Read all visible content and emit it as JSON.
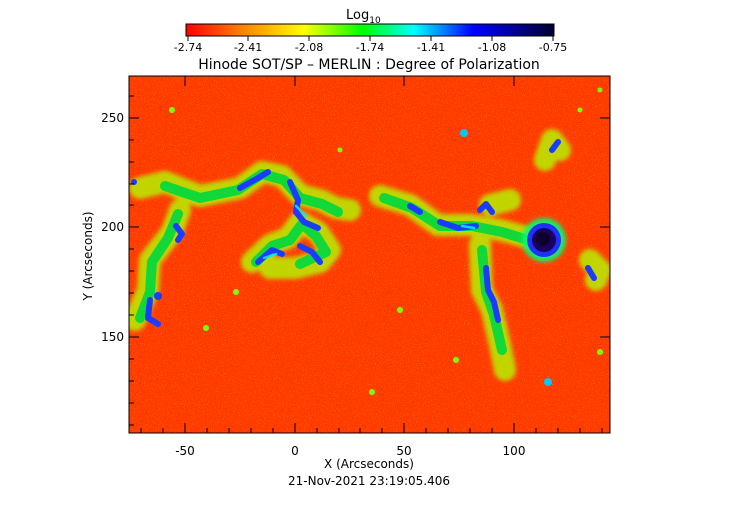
{
  "colorbar": {
    "label": "Log",
    "label_subscript": "10",
    "ticks": [
      "-2.74",
      "-2.41",
      "-2.08",
      "-1.74",
      "-1.41",
      "-1.08",
      "-0.75"
    ]
  },
  "title": "Hinode SOT/SP – MERLIN : Degree of Polarization",
  "xlabel": "X (Arcseconds)",
  "ylabel": "Y (Arcseconds)",
  "x_ticks": [
    "-50",
    "0",
    "50",
    "100"
  ],
  "y_ticks": [
    "250",
    "200",
    "150"
  ],
  "timestamp": "21-Nov-2021 23:19:05.406",
  "map": {
    "x_range": [
      -75,
      143
    ],
    "y_range": [
      103,
      270
    ],
    "colormap": [
      "#ff0000",
      "#ff8000",
      "#ffff00",
      "#00ff00",
      "#00ffff",
      "#0000ff",
      "#000040"
    ],
    "background_color": "#ff3800"
  }
}
